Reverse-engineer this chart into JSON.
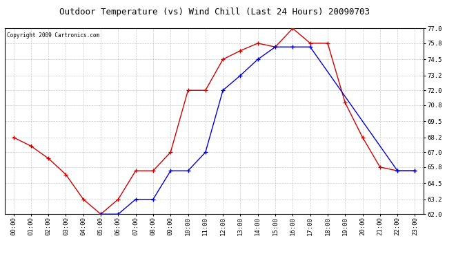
{
  "title": "Outdoor Temperature (vs) Wind Chill (Last 24 Hours) 20090703",
  "copyright": "Copyright 2009 Cartronics.com",
  "hours": [
    "00:00",
    "01:00",
    "02:00",
    "03:00",
    "04:00",
    "05:00",
    "06:00",
    "07:00",
    "08:00",
    "09:00",
    "10:00",
    "11:00",
    "12:00",
    "13:00",
    "14:00",
    "15:00",
    "16:00",
    "17:00",
    "18:00",
    "19:00",
    "20:00",
    "21:00",
    "22:00",
    "23:00"
  ],
  "temp": [
    68.2,
    67.5,
    66.5,
    65.2,
    63.2,
    62.0,
    63.2,
    65.5,
    65.5,
    67.0,
    72.0,
    72.0,
    74.5,
    75.2,
    75.8,
    75.5,
    77.0,
    75.8,
    75.8,
    71.0,
    68.2,
    65.8,
    65.5,
    65.5
  ],
  "wind_chill": [
    null,
    null,
    null,
    null,
    null,
    62.0,
    62.0,
    63.2,
    63.2,
    65.5,
    65.5,
    67.0,
    72.0,
    73.2,
    74.5,
    75.5,
    75.5,
    75.5,
    null,
    null,
    null,
    null,
    65.5,
    65.5
  ],
  "temp_color": "#cc0000",
  "wind_chill_color": "#0000cc",
  "bg_color": "#ffffff",
  "grid_color": "#bbbbbb",
  "ylim_min": 62.0,
  "ylim_max": 77.0,
  "yticks": [
    62.0,
    63.2,
    64.5,
    65.8,
    67.0,
    68.2,
    69.5,
    70.8,
    72.0,
    73.2,
    74.5,
    75.8,
    77.0
  ]
}
